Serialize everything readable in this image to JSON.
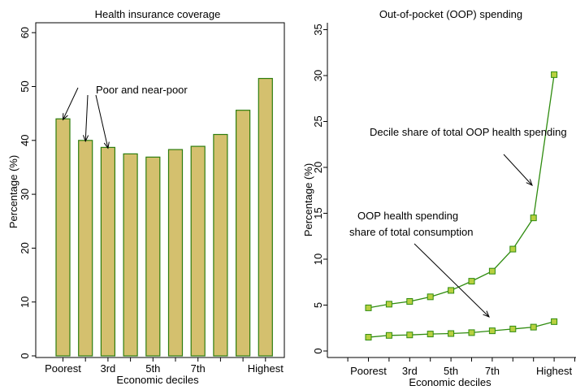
{
  "chart_data": [
    {
      "type": "bar",
      "title": "Health insurance coverage",
      "xlabel": "Economic deciles",
      "ylabel": "Percentage (%)",
      "ylim": [
        0,
        60
      ],
      "yticks": [
        0,
        10,
        20,
        30,
        40,
        50,
        60
      ],
      "categories": [
        "1",
        "2",
        "3",
        "4",
        "5",
        "6",
        "7",
        "8",
        "9",
        "10"
      ],
      "tick_labels": [
        "Poorest",
        "",
        "3rd",
        "",
        "5th",
        "",
        "7th",
        "",
        "",
        "Highest"
      ],
      "values": [
        44.0,
        40.0,
        38.7,
        37.5,
        36.9,
        38.3,
        38.9,
        41.1,
        45.6,
        51.5
      ],
      "bar_color": "#d4c06e",
      "bar_edge_color": "#2e7d0e",
      "annotations": [
        {
          "text": "Poor and near-poor",
          "points_to": [
            1,
            2,
            3
          ]
        }
      ]
    },
    {
      "type": "line",
      "title": "Out-of-pocket (OOP) spending",
      "xlabel": "Economic deciles",
      "ylabel": "Percentage (%)",
      "ylim": [
        0,
        35
      ],
      "yticks": [
        0,
        5,
        10,
        15,
        20,
        25,
        30,
        35
      ],
      "x": [
        1,
        2,
        3,
        4,
        5,
        6,
        7,
        8,
        9,
        10
      ],
      "tick_labels": [
        "Poorest",
        "",
        "3rd",
        "",
        "5th",
        "",
        "7th",
        "",
        "",
        "Highest"
      ],
      "series": [
        {
          "values": [
            4.7,
            5.1,
            5.4,
            5.9,
            6.6,
            7.6,
            8.7,
            11.1,
            14.5,
            30.1
          ]
        },
        {
          "values": [
            1.5,
            1.7,
            1.75,
            1.85,
            1.9,
            2.0,
            2.2,
            2.4,
            2.6,
            3.2
          ]
        }
      ],
      "line_color": "#2e8b0e",
      "marker_color": "#b8d040",
      "annotations": [
        {
          "text": "Decile share of total OOP health spending",
          "series": 0
        },
        {
          "text": "OOP health spending",
          "series": 1
        },
        {
          "text": "share of total consumption",
          "series": 1
        }
      ]
    }
  ]
}
